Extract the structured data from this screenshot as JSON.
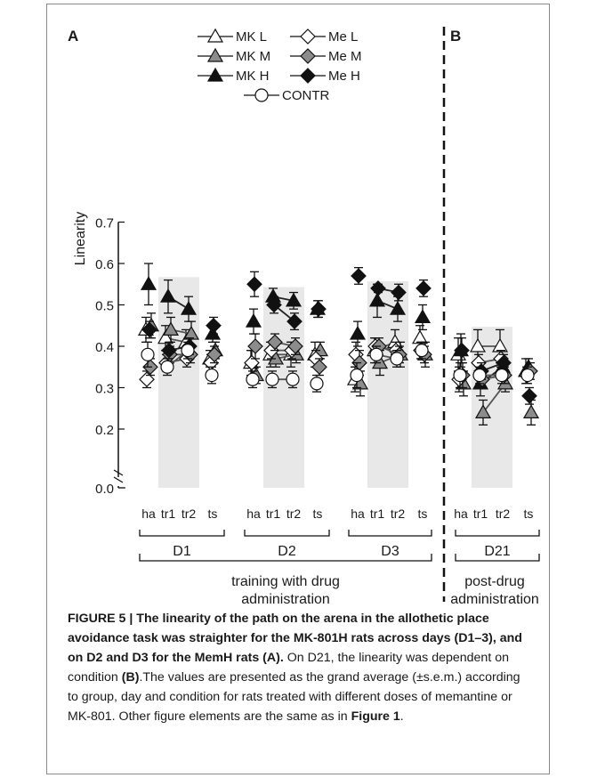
{
  "chart_data": {
    "type": "scatter",
    "ylabel": "Linearity",
    "ylim": [
      0.0,
      0.7
    ],
    "yticks": [
      "0.0",
      "0.2",
      "0.3",
      "0.4",
      "0.5",
      "0.6",
      "0.7"
    ],
    "axis_break": true,
    "grid": false,
    "shaded_columns": [
      "tr1",
      "tr2"
    ],
    "panels": [
      {
        "label": "A",
        "days": [
          "D1",
          "D2",
          "D3"
        ],
        "group_label": [
          "training with drug",
          "administration"
        ]
      },
      {
        "label": "B",
        "days": [
          "D21"
        ],
        "group_label": [
          "post-drug",
          "administration"
        ]
      }
    ],
    "conditions": [
      "ha",
      "tr1",
      "tr2",
      "ts"
    ],
    "legend_position": "top-center",
    "series": [
      {
        "name": "MK L",
        "marker": "triangle-open",
        "line": "#555555",
        "values": {
          "D1": [
            0.44,
            0.42,
            0.41,
            0.37
          ],
          "D2": [
            0.36,
            0.38,
            0.38,
            0.38
          ],
          "D3": [
            0.32,
            0.39,
            0.41,
            0.42
          ],
          "D21": [
            0.38,
            0.4,
            0.4,
            0.34
          ]
        },
        "sem": {
          "D1": [
            0.03,
            0.03,
            0.03,
            0.02
          ],
          "D2": [
            0.03,
            0.03,
            0.03,
            0.03
          ],
          "D3": [
            0.03,
            0.03,
            0.03,
            0.03
          ],
          "D21": [
            0.04,
            0.04,
            0.04,
            0.03
          ]
        }
      },
      {
        "name": "MK M",
        "marker": "triangle-gray",
        "line": "#555555",
        "values": {
          "D1": [
            0.45,
            0.44,
            0.43,
            0.39
          ],
          "D2": [
            0.33,
            0.37,
            0.38,
            0.39
          ],
          "D3": [
            0.31,
            0.36,
            0.38,
            0.38
          ],
          "D21": [
            0.31,
            0.24,
            0.31,
            0.24
          ]
        },
        "sem": {
          "D1": [
            0.03,
            0.03,
            0.03,
            0.02
          ],
          "D2": [
            0.02,
            0.02,
            0.02,
            0.02
          ],
          "D3": [
            0.03,
            0.03,
            0.03,
            0.03
          ],
          "D21": [
            0.03,
            0.03,
            0.02,
            0.03
          ]
        }
      },
      {
        "name": "MK H",
        "marker": "triangle-filled",
        "line": "#222222",
        "values": {
          "D1": [
            0.55,
            0.52,
            0.49,
            0.43
          ],
          "D2": [
            0.46,
            0.52,
            0.51,
            0.49
          ],
          "D3": [
            0.43,
            0.51,
            0.49,
            0.47
          ],
          "D21": [
            0.39,
            0.31,
            0.35,
            0.35
          ]
        },
        "sem": {
          "D1": [
            0.05,
            0.04,
            0.03,
            0.02
          ],
          "D2": [
            0.03,
            0.02,
            0.02,
            0.02
          ],
          "D3": [
            0.03,
            0.04,
            0.03,
            0.03
          ],
          "D21": [
            0.04,
            0.03,
            0.02,
            0.02
          ]
        }
      },
      {
        "name": "Me L",
        "marker": "diamond-open",
        "line": "#555555",
        "values": {
          "D1": [
            0.32,
            0.36,
            0.37,
            0.36
          ],
          "D2": [
            0.36,
            0.39,
            0.39,
            0.37
          ],
          "D3": [
            0.38,
            0.4,
            0.39,
            0.39
          ],
          "D21": [
            0.32,
            0.36,
            0.37,
            0.33
          ]
        },
        "sem": {
          "D1": [
            0.02,
            0.02,
            0.02,
            0.02
          ],
          "D2": [
            0.03,
            0.02,
            0.02,
            0.02
          ],
          "D3": [
            0.03,
            0.02,
            0.02,
            0.02
          ],
          "D21": [
            0.03,
            0.02,
            0.02,
            0.02
          ]
        }
      },
      {
        "name": "Me M",
        "marker": "diamond-gray",
        "line": "#555555",
        "values": {
          "D1": [
            0.35,
            0.38,
            0.38,
            0.38
          ],
          "D2": [
            0.4,
            0.41,
            0.4,
            0.35
          ],
          "D3": [
            0.36,
            0.4,
            0.38,
            0.38
          ],
          "D21": [
            0.33,
            0.32,
            0.33,
            0.34
          ]
        },
        "sem": {
          "D1": [
            0.02,
            0.02,
            0.02,
            0.02
          ],
          "D2": [
            0.03,
            0.02,
            0.02,
            0.02
          ],
          "D3": [
            0.03,
            0.02,
            0.02,
            0.02
          ],
          "D21": [
            0.03,
            0.02,
            0.02,
            0.02
          ]
        }
      },
      {
        "name": "Me H",
        "marker": "diamond-filled",
        "line": "#222222",
        "values": {
          "D1": [
            0.44,
            0.39,
            0.4,
            0.45
          ],
          "D2": [
            0.55,
            0.5,
            0.46,
            0.49
          ],
          "D3": [
            0.57,
            0.54,
            0.53,
            0.54
          ],
          "D21": [
            0.39,
            0.34,
            0.36,
            0.28
          ]
        },
        "sem": {
          "D1": [
            0.02,
            0.02,
            0.02,
            0.02
          ],
          "D2": [
            0.03,
            0.02,
            0.02,
            0.02
          ],
          "D3": [
            0.02,
            0.01,
            0.02,
            0.02
          ],
          "D21": [
            0.03,
            0.02,
            0.02,
            0.02
          ]
        }
      },
      {
        "name": "CONTR",
        "marker": "circle-open",
        "line": "#555555",
        "values": {
          "D1": [
            0.38,
            0.35,
            0.39,
            0.33
          ],
          "D2": [
            0.32,
            0.32,
            0.32,
            0.31
          ],
          "D3": [
            0.33,
            0.38,
            0.37,
            0.39
          ],
          "D21": [
            0.33,
            0.33,
            0.33,
            0.33
          ]
        },
        "sem": {
          "D1": [
            0.03,
            0.02,
            0.02,
            0.02
          ],
          "D2": [
            0.02,
            0.02,
            0.02,
            0.02
          ],
          "D3": [
            0.03,
            0.02,
            0.02,
            0.02
          ],
          "D21": [
            0.03,
            0.02,
            0.02,
            0.02
          ]
        }
      }
    ]
  },
  "caption": {
    "bold": "FIGURE 5 | The linearity of the path on the arena in the allothetic place avoidance task was straighter for the MK-801H rats across days (D1–3), and on D2 and D3 for the MemH rats",
    "bold_ref_a": "(A).",
    "text_1": " On D21, the linearity was dependent on condition ",
    "bold_ref_b": "(B)",
    "text_2": ".The values are presented as the grand average (±s.e.m.) according to group, day and condition for rats treated with different doses of memantine or MK-801. Other figure elements are the same as in ",
    "figure_ref": "Figure 1",
    "text_3": "."
  }
}
